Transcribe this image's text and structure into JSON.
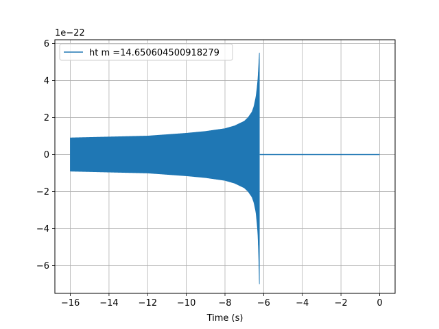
{
  "chart_data": {
    "type": "line",
    "xlabel": "Time (s)",
    "ylabel": "",
    "y_offset_text": "1e−22",
    "xlim": [
      -16.8,
      0.8
    ],
    "ylim": [
      -7.5,
      6.2
    ],
    "x_ticks": [
      -16,
      -14,
      -12,
      -10,
      -8,
      -6,
      -4,
      -2,
      0
    ],
    "x_tick_labels": [
      "−16",
      "−14",
      "−12",
      "−10",
      "−8",
      "−6",
      "−4",
      "−2",
      "0"
    ],
    "y_ticks": [
      -6,
      -4,
      -2,
      0,
      2,
      4,
      6
    ],
    "y_tick_labels": [
      "−6",
      "−4",
      "−2",
      "0",
      "2",
      "4",
      "6"
    ],
    "grid": true,
    "legend_position": "upper-left",
    "series": [
      {
        "name": "ht m =14.650604500918279",
        "color": "#1f77b4",
        "envelope": {
          "t": [
            -16.0,
            -14.0,
            -12.0,
            -10.0,
            -9.0,
            -8.0,
            -7.5,
            -7.0,
            -6.8,
            -6.6,
            -6.5,
            -6.4,
            -6.35,
            -6.3,
            -6.25,
            -6.22
          ],
          "upper": [
            0.9,
            0.95,
            1.0,
            1.15,
            1.25,
            1.4,
            1.55,
            1.8,
            2.0,
            2.3,
            2.6,
            3.1,
            3.5,
            4.0,
            4.9,
            5.5
          ],
          "lower": [
            -0.9,
            -0.95,
            -1.0,
            -1.15,
            -1.25,
            -1.4,
            -1.55,
            -1.8,
            -2.0,
            -2.3,
            -2.6,
            -3.1,
            -3.6,
            -4.2,
            -5.6,
            -7.0
          ]
        },
        "flat": {
          "from": -6.2,
          "to": 0.0,
          "value": 0.0
        }
      }
    ]
  }
}
